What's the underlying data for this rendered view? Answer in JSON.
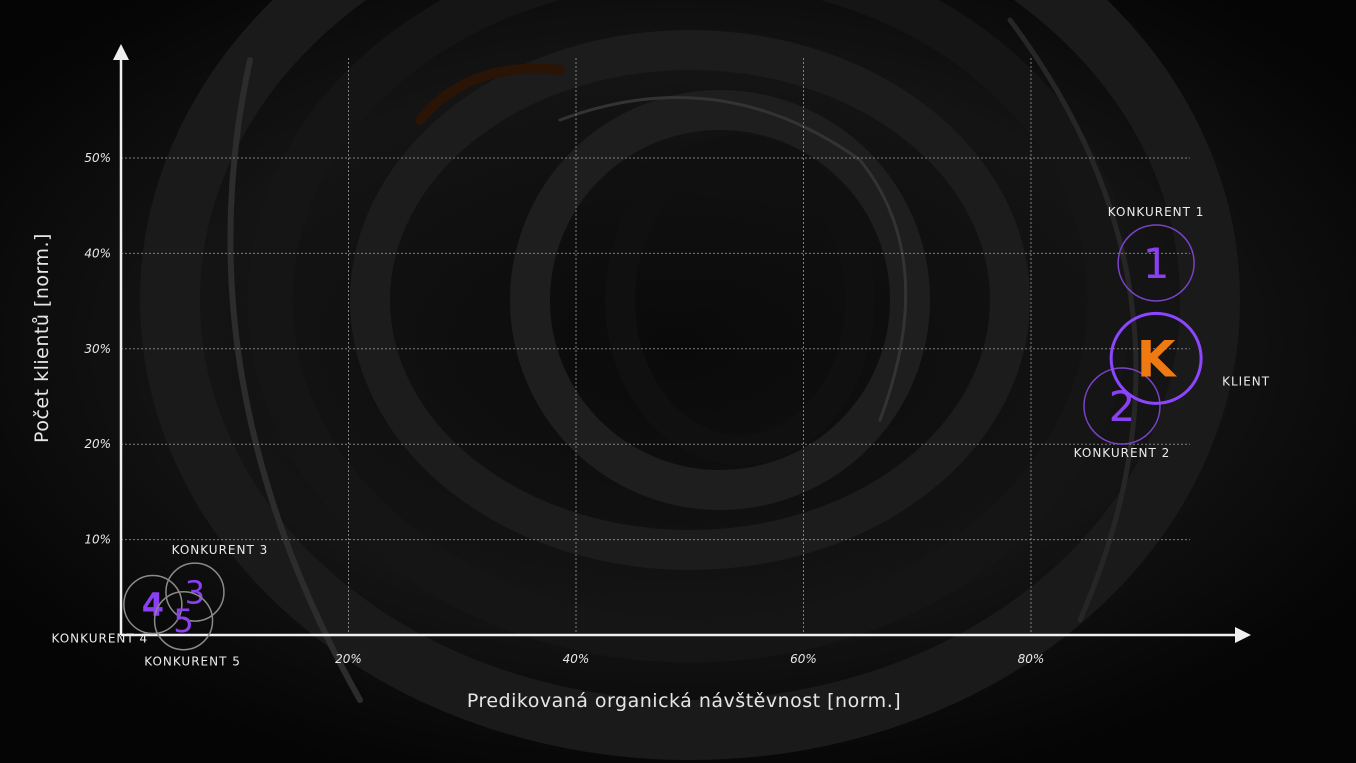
{
  "chart_data": {
    "type": "scatter",
    "xlabel": "Predikovaná organická návštěvnost [norm.]",
    "ylabel": "Počet klientů [norm.]",
    "xlim": [
      0,
      95
    ],
    "ylim": [
      0,
      55
    ],
    "xticks": [
      {
        "value": 20,
        "label": "20%"
      },
      {
        "value": 40,
        "label": "40%"
      },
      {
        "value": 60,
        "label": "60%"
      },
      {
        "value": 80,
        "label": "80%"
      }
    ],
    "yticks": [
      {
        "value": 10,
        "label": "10%"
      },
      {
        "value": 20,
        "label": "20%"
      },
      {
        "value": 30,
        "label": "30%"
      },
      {
        "value": 40,
        "label": "40%"
      },
      {
        "value": 50,
        "label": "50%"
      }
    ],
    "grid": true,
    "points": [
      {
        "id": "k1",
        "marker": "1",
        "label": "KONKURENT 1",
        "x": 91,
        "y": 39,
        "highlight": false,
        "label_pos": "top"
      },
      {
        "id": "klient",
        "marker": "K",
        "label": "KLIENT",
        "x": 91,
        "y": 29,
        "highlight": true,
        "label_pos": "right"
      },
      {
        "id": "k2",
        "marker": "2",
        "label": "KONKURENT 2",
        "x": 88,
        "y": 24,
        "highlight": false,
        "label_pos": "bottom"
      },
      {
        "id": "k3",
        "marker": "3",
        "label": "KONKURENT 3",
        "x": 6.5,
        "y": 4.5,
        "highlight": false,
        "label_pos": "top"
      },
      {
        "id": "k4",
        "marker": "4",
        "label": "KONKURENT 4",
        "x": 2.8,
        "y": 3.2,
        "highlight": false,
        "label_pos": "bottom-left"
      },
      {
        "id": "k5",
        "marker": "5",
        "label": "KONKURENT 5",
        "x": 5.5,
        "y": 1.5,
        "highlight": false,
        "label_pos": "bottom"
      }
    ]
  },
  "colors": {
    "background": "#060606",
    "axis": "#f0f0f0",
    "grid": "#9a9a9a",
    "marker_text": "#8a3ff0",
    "marker_ring": "#7a43c9",
    "client_ring": "#8c46ff",
    "client_text": "#f07a12",
    "label_text": "#ececec"
  }
}
